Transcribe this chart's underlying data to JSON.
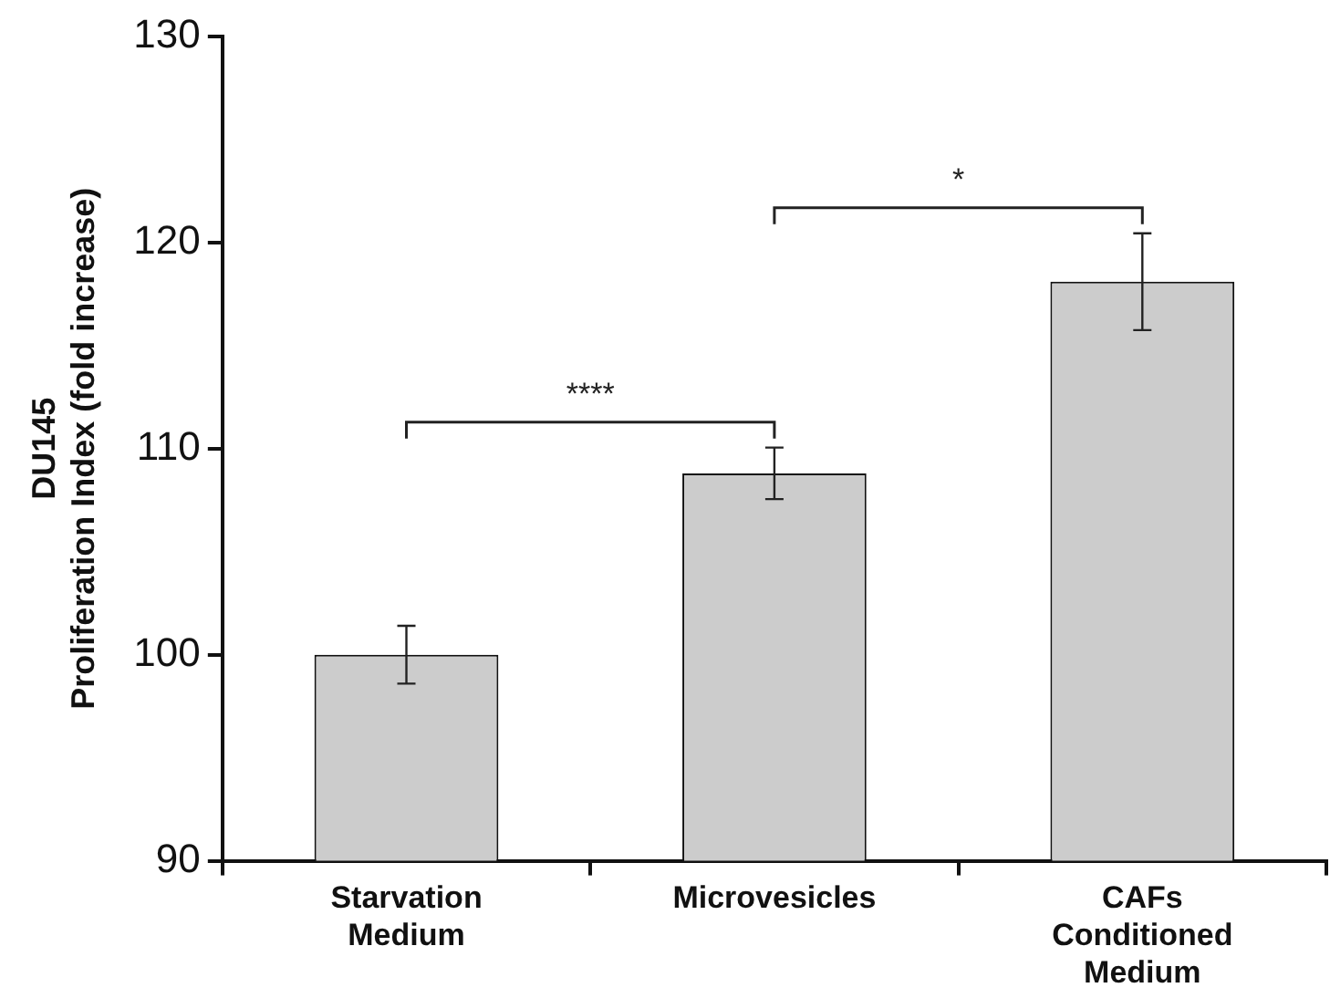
{
  "chart_data": {
    "type": "bar",
    "ylabel": "DU145\nProliferation Index (fold increase)",
    "categories": [
      "Starvation Medium",
      "Microvesicles",
      "CAFs Conditioned Medium"
    ],
    "values": [
      100,
      108.8,
      118.1
    ],
    "errors": [
      1.4,
      1.25,
      2.35
    ],
    "color": "#cccccc",
    "ylim": [
      90,
      130
    ],
    "yticks": [
      90,
      100,
      110,
      120,
      130
    ],
    "grid": false,
    "legend": false,
    "annotations": [
      "****",
      "*"
    ]
  }
}
